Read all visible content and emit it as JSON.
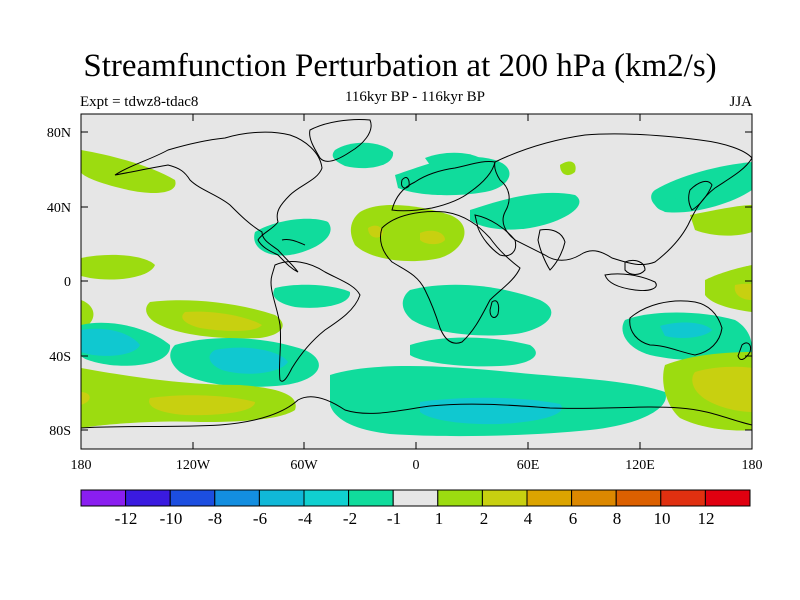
{
  "header": {
    "title": "Streamfunction Perturbation at 200 hPa (km2/s)",
    "subtitle": "116kyr BP - 116kyr BP",
    "left_label": "Expt = tdwz8-tdac8",
    "right_label": "JJA"
  },
  "map": {
    "lat_ticks": [
      "80N",
      "40N",
      "0",
      "40S",
      "80S"
    ],
    "lon_ticks": [
      "180",
      "120W",
      "60W",
      "0",
      "60E",
      "120E",
      "180"
    ],
    "background_color": "#e6e6e6"
  },
  "colorbar": {
    "labels": [
      "-12",
      "-10",
      "-8",
      "-6",
      "-4",
      "-2",
      "-1",
      "1",
      "2",
      "4",
      "6",
      "8",
      "10",
      "12"
    ],
    "colors": [
      "#8a1ef0",
      "#3a1ae0",
      "#1c4ee0",
      "#138ee0",
      "#10b8d8",
      "#10d0d0",
      "#10dc9c",
      "#e6e6e6",
      "#9cdc10",
      "#c8d010",
      "#dca400",
      "#dc8800",
      "#dc6000",
      "#e03010",
      "#e00010"
    ]
  }
}
